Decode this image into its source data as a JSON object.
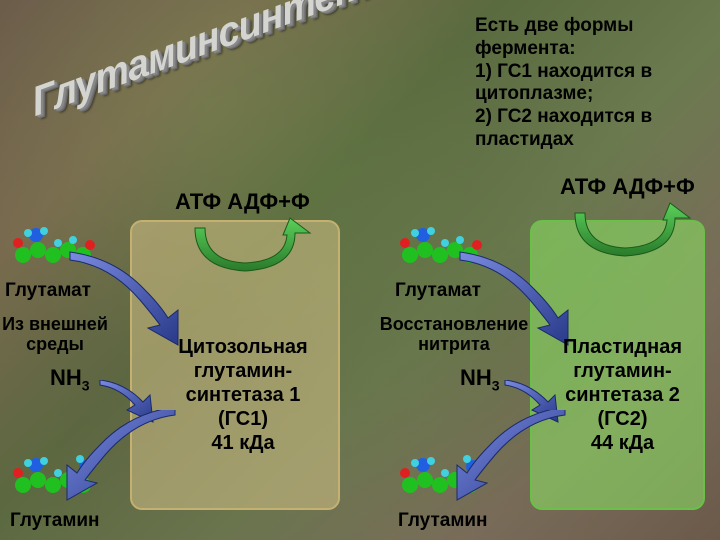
{
  "title": "Глутаминсинтетаза",
  "info_text": "Есть две формы фермента:\n1) ГС1 находится в цитоплазме;\n2) ГС2 находится в пластидах",
  "atp_left": "АТФ  АДФ+Ф",
  "atp_right": "АТФ  АДФ+Ф",
  "glutamate_left": "Глутамат",
  "glutamate_right": "Глутамат",
  "glutamine_left": "Глутамин",
  "glutamine_right": "Глутамин",
  "source_left": "Из внешней среды",
  "source_right": "Восстановление нитрита",
  "nh3_left": "NH",
  "nh3_right": "NH",
  "nh3_sub": "3",
  "enzyme1_text": "Цитозольная глутамин-синтетаза 1 (ГС1)\n41 кДа",
  "enzyme2_text": "Пластидная глутамин-синтетаза 2 (ГС2)\n44 кДа",
  "colors": {
    "box1_bg": "rgba(220,200,140,0.5)",
    "box1_border": "#c4b070",
    "box2_bg": "rgba(140,230,100,0.55)",
    "box2_border": "#6ac048",
    "arrow_blue_dark": "#2a3a8a",
    "arrow_blue_light": "#5a6ad0",
    "arrow_green_dark": "#2a7a2a",
    "arrow_green_light": "#4ac04a",
    "atom_green": "#20c020",
    "atom_blue": "#2060e0",
    "atom_cyan": "#40d0e0",
    "atom_red": "#e02020"
  }
}
